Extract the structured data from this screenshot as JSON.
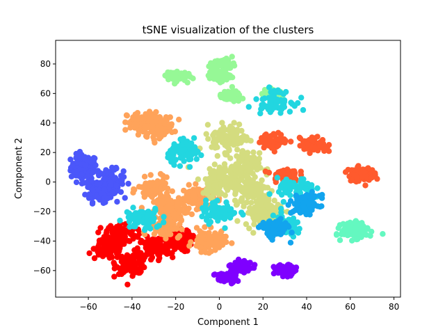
{
  "chart_data": {
    "type": "scatter",
    "title": "tSNE visualization of the clusters",
    "xlabel": "Component 1",
    "ylabel": "Component 2",
    "xlim": [
      -75,
      83
    ],
    "ylim": [
      -78,
      96
    ],
    "xticks": [
      -60,
      -40,
      -20,
      0,
      20,
      40,
      60,
      80
    ],
    "yticks": [
      -60,
      -40,
      -20,
      0,
      20,
      40,
      60,
      80
    ],
    "grid": false,
    "legend": "none",
    "clusters": [
      {
        "color": "#4b57fa",
        "centers": [
          [
            -62,
            10
          ],
          [
            -55,
            -5
          ],
          [
            -50,
            0
          ]
        ],
        "spread": [
          5,
          7
        ],
        "count": 320
      },
      {
        "color": "#ff0000",
        "centers": [
          [
            -50,
            -45
          ],
          [
            -40,
            -55
          ],
          [
            -30,
            -45
          ],
          [
            -45,
            -35
          ],
          [
            -20,
            -40
          ]
        ],
        "spread": [
          6,
          6
        ],
        "count": 520
      },
      {
        "color": "#ffa35a",
        "centers": [
          [
            -35,
            40
          ],
          [
            -28,
            38
          ],
          [
            -22,
            -18
          ],
          [
            -10,
            -10
          ],
          [
            -30,
            -5
          ],
          [
            -5,
            -40
          ],
          [
            -25,
            -30
          ]
        ],
        "spread": [
          6,
          6
        ],
        "count": 650
      },
      {
        "color": "#d4dc7f",
        "centers": [
          [
            10,
            10
          ],
          [
            5,
            30
          ],
          [
            15,
            -5
          ],
          [
            0,
            0
          ],
          [
            20,
            -20
          ]
        ],
        "spread": [
          7,
          8
        ],
        "count": 520
      },
      {
        "color": "#96f896",
        "centers": [
          [
            2,
            80
          ],
          [
            0,
            72
          ],
          [
            -20,
            72
          ],
          [
            25,
            60
          ],
          [
            5,
            58
          ]
        ],
        "spread": [
          4,
          3
        ],
        "count": 320
      },
      {
        "color": "#ff5a2d",
        "centers": [
          [
            43,
            25
          ],
          [
            25,
            28
          ],
          [
            65,
            5
          ],
          [
            30,
            5
          ]
        ],
        "spread": [
          5,
          4
        ],
        "count": 300
      },
      {
        "color": "#22d6e0",
        "centers": [
          [
            0,
            -20
          ],
          [
            35,
            -5
          ],
          [
            -15,
            20
          ],
          [
            30,
            -30
          ],
          [
            -35,
            -25
          ],
          [
            25,
            55
          ]
        ],
        "spread": [
          7,
          6
        ],
        "count": 420
      },
      {
        "color": "#12a4ee",
        "centers": [
          [
            40,
            -15
          ],
          [
            25,
            -32
          ]
        ],
        "spread": [
          5,
          5
        ],
        "count": 220
      },
      {
        "color": "#64f8c0",
        "centers": [
          [
            62,
            -33
          ]
        ],
        "spread": [
          5,
          4
        ],
        "count": 160
      },
      {
        "color": "#7f00ff",
        "centers": [
          [
            3,
            -65
          ],
          [
            10,
            -57
          ],
          [
            30,
            -60
          ]
        ],
        "spread": [
          4,
          3
        ],
        "count": 200
      }
    ]
  }
}
